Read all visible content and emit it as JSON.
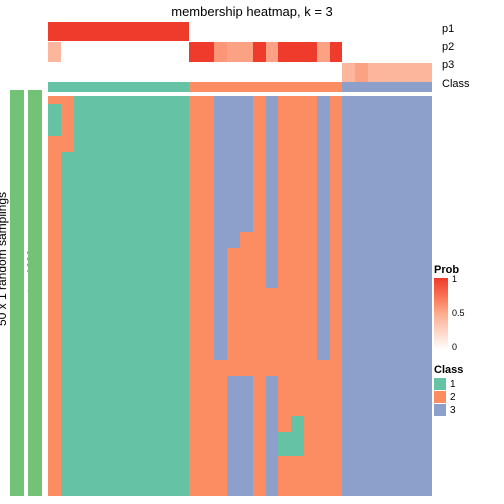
{
  "title": "membership heatmap, k = 3",
  "yaxis_label": "50 x 1 random samplings",
  "row_annotation_label": "top 1000 rows",
  "annotation_rows": [
    "p1",
    "p2",
    "p3",
    "Class"
  ],
  "palette": {
    "class1": "#66c2a5",
    "class2": "#fc8d62",
    "class3": "#8da0cb",
    "green_side": "#72c376",
    "white": "#ffffff",
    "prob0": "#ffffff",
    "prob05": "#fcae91",
    "prob07": "#fb7d5d",
    "prob1": "#ef3b2c",
    "title_fontsize": 13,
    "axis_fontsize": 12,
    "annot_fontsize": 11,
    "legend_fontsize": 10
  },
  "left_sidebar": {
    "bar1_color": "#72c376",
    "bar2_color": "#72c376"
  },
  "n_cols": 30,
  "p1": [
    1.0,
    1.0,
    1.0,
    1.0,
    1.0,
    1.0,
    1.0,
    1.0,
    1.0,
    1.0,
    1.0,
    0.0,
    0.0,
    0.0,
    0.0,
    0.0,
    0.0,
    0.0,
    0.0,
    0.0,
    0.0,
    0.0,
    0.0,
    0.0,
    0.0,
    0.0,
    0.0,
    0.0,
    0.0,
    0.0
  ],
  "p2": [
    0.45,
    0.0,
    0.0,
    0.0,
    0.0,
    0.0,
    0.0,
    0.0,
    0.0,
    0.0,
    0.0,
    1.0,
    1.0,
    0.6,
    0.55,
    0.55,
    1.0,
    0.55,
    1.0,
    1.0,
    1.0,
    0.55,
    1.0,
    0.0,
    0.0,
    0.0,
    0.0,
    0.0,
    0.0,
    0.0
  ],
  "p3": [
    0.0,
    0.0,
    0.0,
    0.0,
    0.0,
    0.0,
    0.0,
    0.0,
    0.0,
    0.0,
    0.0,
    0.0,
    0.0,
    0.0,
    0.0,
    0.0,
    0.0,
    0.0,
    0.0,
    0.0,
    0.0,
    0.0,
    0.0,
    0.45,
    0.55,
    0.45,
    0.45,
    0.45,
    0.45,
    0.45
  ],
  "class_row": [
    1,
    1,
    1,
    1,
    1,
    1,
    1,
    1,
    1,
    1,
    1,
    2,
    2,
    2,
    2,
    2,
    2,
    2,
    2,
    2,
    2,
    2,
    2,
    3,
    3,
    3,
    3,
    3,
    3,
    3
  ],
  "body_cols": [
    [
      [
        "class2",
        0.02
      ],
      [
        "class1",
        0.08
      ],
      [
        "class2",
        0.9
      ]
    ],
    [
      [
        "class2",
        0.14
      ],
      [
        "class1",
        0.86
      ]
    ],
    [
      [
        "class1",
        1.0
      ]
    ],
    [
      [
        "class1",
        1.0
      ]
    ],
    [
      [
        "class1",
        1.0
      ]
    ],
    [
      [
        "class1",
        1.0
      ]
    ],
    [
      [
        "class1",
        1.0
      ]
    ],
    [
      [
        "class1",
        1.0
      ]
    ],
    [
      [
        "class1",
        1.0
      ]
    ],
    [
      [
        "class1",
        1.0
      ]
    ],
    [
      [
        "class1",
        1.0
      ]
    ],
    [
      [
        "class2",
        1.0
      ]
    ],
    [
      [
        "class2",
        1.0
      ]
    ],
    [
      [
        "class3",
        0.66
      ],
      [
        "class2",
        0.34
      ]
    ],
    [
      [
        "class3",
        0.38
      ],
      [
        "class2",
        0.32
      ],
      [
        "class3",
        0.3
      ]
    ],
    [
      [
        "class3",
        0.34
      ],
      [
        "class2",
        0.36
      ],
      [
        "class3",
        0.3
      ]
    ],
    [
      [
        "class2",
        1.0
      ]
    ],
    [
      [
        "class3",
        0.48
      ],
      [
        "class2",
        0.22
      ],
      [
        "class3",
        0.3
      ]
    ],
    [
      [
        "class2",
        0.84
      ],
      [
        "class1",
        0.06
      ],
      [
        "class2",
        0.1
      ]
    ],
    [
      [
        "class2",
        0.8
      ],
      [
        "class1",
        0.1
      ],
      [
        "class2",
        0.1
      ]
    ],
    [
      [
        "class2",
        1.0
      ]
    ],
    [
      [
        "class3",
        0.66
      ],
      [
        "class2",
        0.34
      ]
    ],
    [
      [
        "class2",
        1.0
      ]
    ],
    [
      [
        "class3",
        1.0
      ]
    ],
    [
      [
        "class3",
        1.0
      ]
    ],
    [
      [
        "class3",
        1.0
      ]
    ],
    [
      [
        "class3",
        1.0
      ]
    ],
    [
      [
        "class3",
        1.0
      ]
    ],
    [
      [
        "class3",
        1.0
      ]
    ],
    [
      [
        "class3",
        1.0
      ]
    ]
  ],
  "prob_legend": {
    "title": "Prob",
    "ticks": [
      {
        "v": 1,
        "label": "1"
      },
      {
        "v": 0.5,
        "label": "0.5"
      },
      {
        "v": 0,
        "label": "0"
      }
    ]
  },
  "class_legend": {
    "title": "Class",
    "items": [
      {
        "label": "1",
        "color": "#66c2a5"
      },
      {
        "label": "2",
        "color": "#fc8d62"
      },
      {
        "label": "3",
        "color": "#8da0cb"
      }
    ]
  }
}
